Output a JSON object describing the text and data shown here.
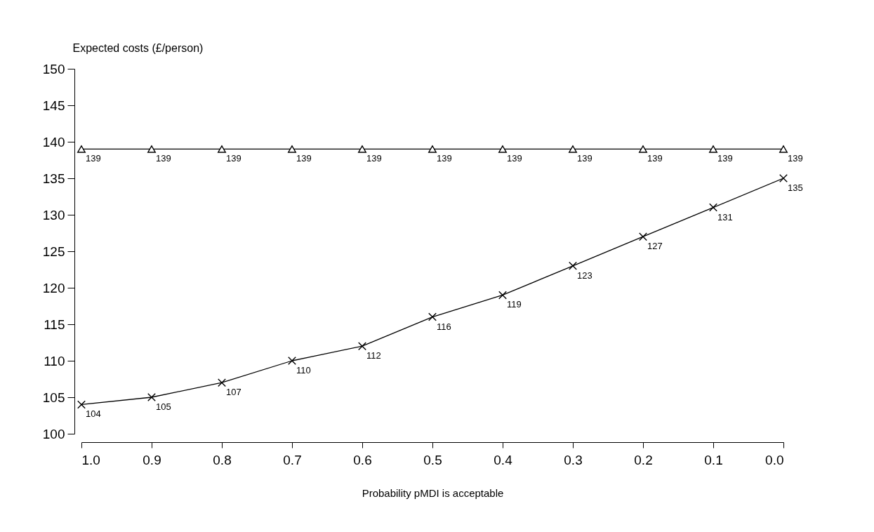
{
  "chart_data": {
    "type": "line",
    "xlabel": "Probability pMDI is acceptable",
    "ylabel": "Expected costs (£/person)",
    "x": [
      1.0,
      0.9,
      0.8,
      0.7,
      0.6,
      0.5,
      0.4,
      0.3,
      0.2,
      0.1,
      0.0
    ],
    "series": [
      {
        "color": "#000000",
        "marker": "triangle",
        "values": [
          139,
          139,
          139,
          139,
          139,
          139,
          139,
          139,
          139,
          139,
          139
        ]
      },
      {
        "color": "#000000",
        "marker": "cross",
        "values": [
          104,
          105,
          107,
          110,
          112,
          116,
          119,
          123,
          127,
          131,
          135
        ]
      }
    ],
    "xlim": [
      1.0,
      0.0
    ],
    "xticks": [
      {
        "value": 1.0,
        "label": "1.0"
      },
      {
        "value": 0.9,
        "label": "0.9"
      },
      {
        "value": 0.8,
        "label": "0.8"
      },
      {
        "value": 0.7,
        "label": "0.7"
      },
      {
        "value": 0.6,
        "label": "0.6"
      },
      {
        "value": 0.5,
        "label": "0.5"
      },
      {
        "value": 0.4,
        "label": "0.4"
      },
      {
        "value": 0.3,
        "label": "0.3"
      },
      {
        "value": 0.2,
        "label": "0.2"
      },
      {
        "value": 0.1,
        "label": "0.1"
      },
      {
        "value": 0.0,
        "label": "0.0"
      }
    ],
    "ylim": [
      100,
      150
    ],
    "yticks": [
      100,
      105,
      110,
      115,
      120,
      125,
      130,
      135,
      140,
      145,
      150
    ],
    "data_labels": true,
    "grid": false,
    "line_style": "solid"
  }
}
